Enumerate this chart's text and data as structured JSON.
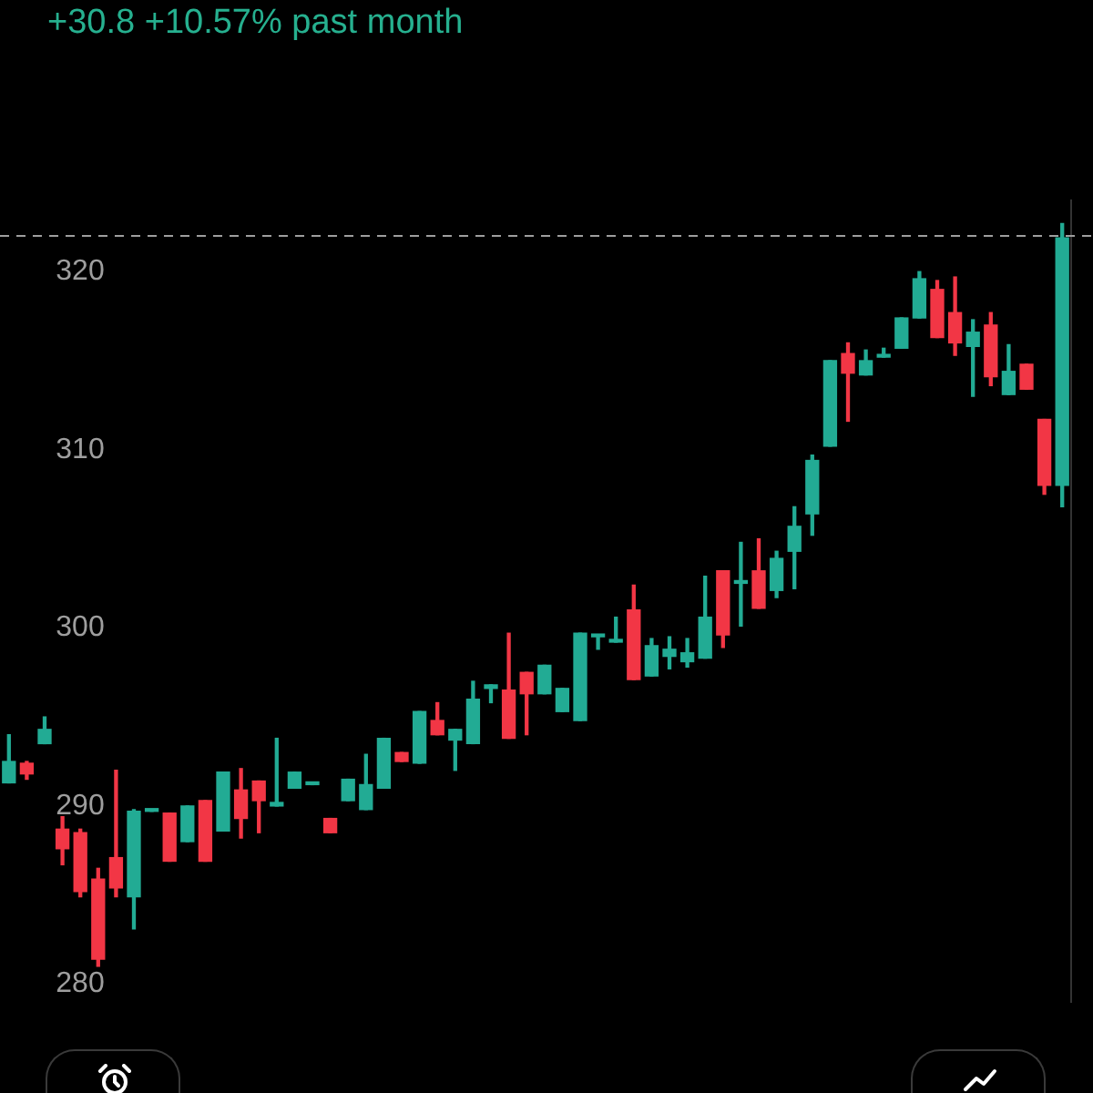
{
  "chart_data": {
    "type": "candlestick",
    "title": "+30.8 +10.57% past month",
    "categories": [
      null,
      null,
      null,
      null,
      null,
      null,
      null,
      null,
      null,
      null,
      null,
      null,
      null,
      null,
      null,
      null,
      null,
      null,
      null,
      null,
      null,
      null,
      null,
      null,
      null,
      null,
      null,
      null,
      null,
      null,
      null,
      null,
      null,
      null,
      null,
      null,
      null,
      null,
      null,
      null,
      null,
      null,
      null,
      null,
      null,
      null,
      null,
      null,
      null,
      null,
      null,
      null,
      null,
      null,
      null,
      null,
      null,
      null,
      null,
      null
    ],
    "ohlc": [
      [
        291.3,
        294.0,
        291.3,
        292.5
      ],
      [
        292.4,
        292.5,
        291.5,
        291.8
      ],
      [
        293.5,
        295.0,
        293.5,
        294.3
      ],
      [
        288.7,
        289.4,
        286.7,
        287.6
      ],
      [
        288.5,
        288.7,
        284.9,
        285.2
      ],
      [
        285.9,
        286.5,
        281.0,
        281.4
      ],
      [
        287.1,
        292.0,
        284.9,
        285.4
      ],
      [
        284.9,
        289.8,
        283.1,
        289.7
      ],
      [
        289.7,
        289.8,
        289.7,
        289.8
      ],
      [
        289.6,
        289.6,
        286.9,
        286.9
      ],
      [
        288.0,
        290.0,
        288.0,
        290.0
      ],
      [
        290.3,
        290.3,
        286.9,
        286.9
      ],
      [
        288.6,
        291.9,
        288.6,
        291.9
      ],
      [
        290.9,
        292.1,
        288.2,
        289.3
      ],
      [
        291.4,
        291.4,
        288.5,
        290.3
      ],
      [
        290.0,
        293.8,
        290.0,
        290.2
      ],
      [
        291.0,
        291.9,
        291.0,
        291.9
      ],
      [
        291.2,
        291.3,
        291.2,
        291.3
      ],
      [
        289.3,
        289.3,
        288.5,
        288.5
      ],
      [
        290.3,
        291.5,
        290.3,
        291.5
      ],
      [
        289.8,
        292.9,
        289.8,
        291.2
      ],
      [
        291.0,
        293.8,
        291.0,
        293.8
      ],
      [
        293.0,
        293.0,
        292.5,
        292.5
      ],
      [
        292.4,
        295.3,
        292.4,
        295.3
      ],
      [
        294.8,
        295.8,
        294.0,
        294.0
      ],
      [
        293.7,
        294.3,
        292.0,
        294.3
      ],
      [
        293.5,
        297.0,
        293.5,
        296.0
      ],
      [
        296.6,
        296.8,
        295.8,
        296.8
      ],
      [
        296.5,
        299.7,
        293.8,
        293.8
      ],
      [
        297.5,
        297.5,
        294.0,
        296.3
      ],
      [
        296.3,
        297.9,
        296.3,
        297.9
      ],
      [
        295.3,
        296.6,
        295.3,
        296.6
      ],
      [
        294.8,
        299.7,
        294.8,
        299.7
      ],
      [
        299.5,
        299.6,
        298.8,
        299.6
      ],
      [
        299.2,
        300.6,
        299.2,
        299.3
      ],
      [
        301.0,
        302.4,
        297.1,
        297.1
      ],
      [
        297.3,
        299.4,
        297.3,
        299.0
      ],
      [
        298.4,
        299.5,
        297.7,
        298.8
      ],
      [
        298.1,
        299.4,
        297.8,
        298.6
      ],
      [
        298.3,
        302.9,
        298.3,
        300.6
      ],
      [
        303.2,
        303.2,
        298.9,
        299.6
      ],
      [
        302.5,
        304.8,
        300.1,
        302.6
      ],
      [
        303.2,
        305.0,
        301.1,
        301.1
      ],
      [
        302.1,
        304.3,
        301.7,
        303.9
      ],
      [
        304.3,
        306.8,
        302.2,
        305.7
      ],
      [
        306.4,
        309.7,
        305.2,
        309.4
      ],
      [
        310.2,
        315.0,
        310.2,
        315.0
      ],
      [
        315.4,
        316.0,
        311.6,
        314.3
      ],
      [
        314.2,
        315.6,
        314.2,
        315.0
      ],
      [
        315.2,
        315.7,
        315.2,
        315.3
      ],
      [
        315.7,
        317.4,
        315.7,
        317.4
      ],
      [
        317.4,
        320.0,
        317.4,
        319.6
      ],
      [
        319.0,
        319.5,
        316.3,
        316.3
      ],
      [
        317.7,
        319.7,
        315.3,
        316.0
      ],
      [
        315.8,
        317.3,
        313.0,
        316.6
      ],
      [
        317.0,
        317.7,
        313.6,
        314.1
      ],
      [
        313.1,
        315.9,
        313.1,
        314.4
      ],
      [
        314.8,
        314.8,
        313.4,
        313.4
      ],
      [
        311.7,
        311.7,
        307.5,
        308.0
      ],
      [
        308.0,
        322.7,
        306.8,
        321.9
      ]
    ],
    "colors": [
      "#22ab94",
      "#f23645",
      "#22ab94",
      "#f23645",
      "#f23645",
      "#f23645",
      "#f23645",
      "#22ab94",
      "#22ab94",
      "#f23645",
      "#22ab94",
      "#f23645",
      "#22ab94",
      "#f23645",
      "#f23645",
      "#22ab94",
      "#22ab94",
      "#22ab94",
      "#f23645",
      "#22ab94",
      "#22ab94",
      "#22ab94",
      "#f23645",
      "#22ab94",
      "#f23645",
      "#22ab94",
      "#22ab94",
      "#22ab94",
      "#f23645",
      "#f23645",
      "#22ab94",
      "#22ab94",
      "#22ab94",
      "#22ab94",
      "#22ab94",
      "#f23645",
      "#22ab94",
      "#22ab94",
      "#22ab94",
      "#22ab94",
      "#f23645",
      "#22ab94",
      "#f23645",
      "#22ab94",
      "#22ab94",
      "#22ab94",
      "#22ab94",
      "#f23645",
      "#22ab94",
      "#22ab94",
      "#22ab94",
      "#22ab94",
      "#f23645",
      "#f23645",
      "#22ab94",
      "#f23645",
      "#22ab94",
      "#f23645",
      "#f23645",
      "#22ab94"
    ],
    "ylim": [
      279,
      324
    ],
    "yticks": [
      280,
      290,
      300,
      310,
      320
    ],
    "grid": false,
    "tick_labels": "y",
    "ref_lines": [
      {
        "axis": "y",
        "value": 322.0,
        "color": "#9e9e9e",
        "line_style": "dashed"
      }
    ]
  }
}
